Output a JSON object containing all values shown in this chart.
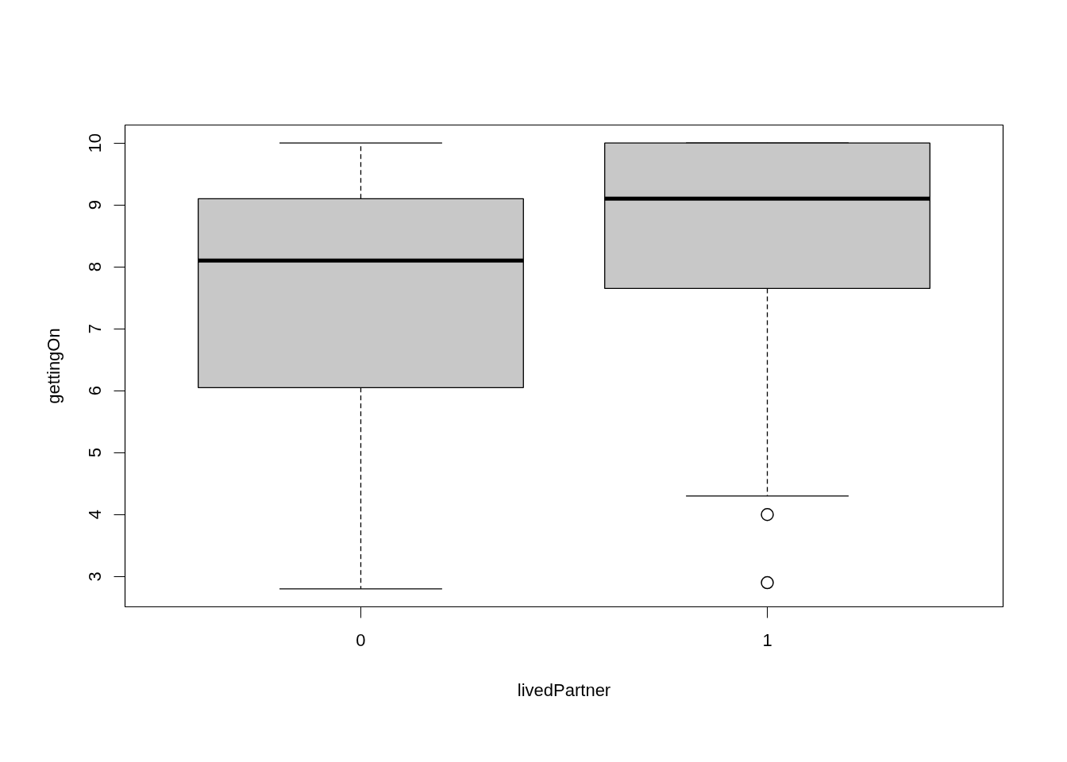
{
  "chart_data": {
    "type": "box",
    "categories": [
      "0",
      "1"
    ],
    "xlabel": "livedPartner",
    "ylabel": "gettingOn",
    "ylim": [
      2.51,
      10.29
    ],
    "yticks": [
      3,
      4,
      5,
      6,
      7,
      8,
      9,
      10
    ],
    "marker": "circle",
    "series": [
      {
        "color": "#c8c8c8",
        "boxes": [
          {
            "low": 2.8,
            "q1": 6.05,
            "median": 8.1,
            "q3": 9.1,
            "high": 10
          },
          {
            "low": 4.3,
            "q1": 7.65,
            "median": 9.1,
            "q3": 10,
            "high": 10,
            "outliers": [
              4.0,
              2.9
            ]
          }
        ]
      }
    ]
  }
}
